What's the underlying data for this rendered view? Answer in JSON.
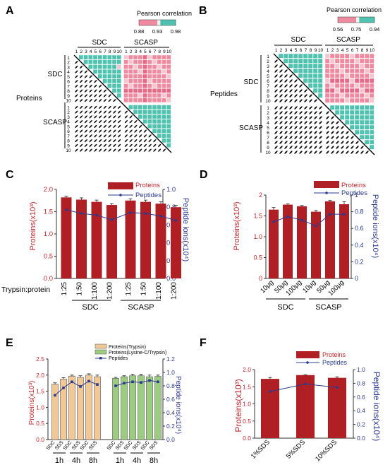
{
  "colors": {
    "bar": "#b01f24",
    "line": "#2b3a8f",
    "axis_left": "#c0272d",
    "axis_right": "#2b3a8f",
    "heat_teal": "#4fc3b0",
    "heat_pink": "#f08aa0",
    "heat_light": "#f7c5cf",
    "trypsin_bar": "#f2c896",
    "lysc_bar": "#9ccc7f"
  },
  "panels": {
    "A": {
      "letter": "A",
      "legend_title": "Pearson correlation",
      "legend_ticks": [
        "0.88",
        "0.93",
        "0.98"
      ],
      "group_top_1": "SDC",
      "group_top_2": "SCASP",
      "sample_numbers": [
        "1",
        "2",
        "3",
        "4",
        "5",
        "6",
        "7",
        "8",
        "9",
        "10"
      ],
      "row_group_1": "SDC",
      "row_group_2": "SCASP",
      "side_label": "Proteins"
    },
    "B": {
      "letter": "B",
      "legend_title": "Pearson correlation",
      "legend_ticks": [
        "0.56",
        "0.75",
        "0.94"
      ],
      "group_top_1": "SDC",
      "group_top_2": "SCASP",
      "sample_numbers": [
        "1",
        "2",
        "3",
        "4",
        "5",
        "6",
        "7",
        "8",
        "9",
        "10"
      ],
      "row_group_1": "SDC",
      "row_group_2": "SCASP",
      "side_label": "Peptides"
    },
    "C": {
      "letter": "C",
      "row_label": "Trypsin:protein",
      "group_1": "SDC",
      "group_2": "SCASP"
    },
    "D": {
      "letter": "D",
      "group_1": "SDC",
      "group_2": "SCASP"
    },
    "E": {
      "letter": "E",
      "time_labels": [
        "1h",
        "4h",
        "8h",
        "1h",
        "4h",
        "8h"
      ]
    },
    "F": {
      "letter": "F"
    }
  },
  "chart_data": [
    {
      "id": "A",
      "type": "heatmap",
      "title": "Pearson correlation",
      "scale": [
        0.88,
        0.93,
        0.98
      ],
      "rows": [
        "SDC 1-10",
        "SCASP 1-10"
      ],
      "note": "upper triangle colored heatmap, lower triangle scatter thumbnails"
    },
    {
      "id": "B",
      "type": "heatmap",
      "title": "Pearson correlation",
      "scale": [
        0.56,
        0.75,
        0.94
      ],
      "rows": [
        "SDC 1-10",
        "SCASP 1-10"
      ],
      "note": "upper triangle colored heatmap, lower triangle scatter thumbnails"
    },
    {
      "id": "C",
      "type": "bar",
      "categories": [
        "1:25",
        "1:50",
        "1:100",
        "1:200",
        "1:25",
        "1:50",
        "1:100",
        "1:200"
      ],
      "ylabel": "Proteins(x10³)",
      "y2label": "Peptide ions(x10⁴)",
      "ylim": [
        0,
        2.0
      ],
      "y2lim": [
        0,
        1.0
      ],
      "yticks": [
        "0.0",
        "0.5",
        "1.0",
        "1.5",
        "2.0"
      ],
      "y2ticks": [
        "0.0",
        "0.2",
        "0.4",
        "0.6",
        "0.8",
        "1.0"
      ],
      "series": [
        {
          "name": "Proteins",
          "values": [
            1.82,
            1.77,
            1.72,
            1.65,
            1.75,
            1.72,
            1.68,
            1.6
          ],
          "errors": [
            0.03,
            0.04,
            0.04,
            0.03,
            0.04,
            0.04,
            0.04,
            0.04
          ]
        },
        {
          "name": "Peptides",
          "values": [
            0.77,
            0.73,
            0.71,
            0.66,
            0.74,
            0.73,
            0.7,
            0.65
          ]
        }
      ]
    },
    {
      "id": "D",
      "type": "bar",
      "categories": [
        "10μg",
        "50μg",
        "100μg",
        "10μg",
        "50μg",
        "100μg"
      ],
      "ylabel": "Proteins(x10³)",
      "y2label": "Peptide ions(x10⁴)",
      "ylim": [
        0,
        2.0
      ],
      "y2lim": [
        0,
        1.0
      ],
      "yticks": [
        "0",
        "0.5",
        "1.0",
        "1.5",
        "2"
      ],
      "y2ticks": [
        "0",
        "0.2",
        "0.4",
        "0.6",
        "0.8",
        "1"
      ],
      "series": [
        {
          "name": "Proteins",
          "values": [
            1.65,
            1.77,
            1.73,
            1.6,
            1.85,
            1.78
          ],
          "errors": [
            0.05,
            0.02,
            0.02,
            0.03,
            0.02,
            0.06
          ]
        },
        {
          "name": "Peptides",
          "values": [
            0.68,
            0.74,
            0.7,
            0.63,
            0.77,
            0.77
          ]
        }
      ]
    },
    {
      "id": "E",
      "type": "bar",
      "categories": [
        "SDC",
        "SDS",
        "SDC",
        "SDS",
        "SDC",
        "SDS",
        "SDC",
        "SDS",
        "SDC",
        "SDS",
        "SDC",
        "SDS"
      ],
      "ylabel": "Proteins(x10³)",
      "y2label": "Peptide ions(x10⁴)",
      "ylim": [
        0,
        2.5
      ],
      "y2lim": [
        0,
        1.2
      ],
      "yticks": [
        "0.0",
        "0.5",
        "1.0",
        "1.5",
        "2.0",
        "2.5"
      ],
      "y2ticks": [
        "0.0",
        "0.2",
        "0.4",
        "0.6",
        "0.8",
        "1.0",
        "1.2"
      ],
      "series": [
        {
          "name": "Proteins(Trypsin)",
          "values": [
            1.72,
            1.88,
            1.97,
            1.93,
            2.0,
            1.95,
            null,
            null,
            null,
            null,
            null,
            null
          ],
          "errors": [
            0.04,
            0.04,
            0.03,
            0.05,
            0.04,
            0.05
          ]
        },
        {
          "name": "Proteins(Lysine-C/Trypsin)",
          "values": [
            null,
            null,
            null,
            null,
            null,
            null,
            1.9,
            1.95,
            1.98,
            1.98,
            1.95,
            1.96
          ],
          "errors": [
            0.03,
            0.03,
            0.05,
            0.05,
            0.05,
            0.04
          ]
        },
        {
          "name": "Peptides",
          "values": [
            0.66,
            0.77,
            0.86,
            0.79,
            0.87,
            0.82,
            0.8,
            0.84,
            0.86,
            0.85,
            0.88,
            0.86
          ]
        }
      ]
    },
    {
      "id": "F",
      "type": "bar",
      "categories": [
        "1%SDS",
        "5%SDS",
        "10%SDS"
      ],
      "ylabel": "Proteins(x10³)",
      "y2label": "Peptide ions(x10⁴)",
      "ylim": [
        0,
        2.0
      ],
      "y2lim": [
        0,
        1.0
      ],
      "yticks": [
        "0.0",
        "0.5",
        "1.0",
        "1.5",
        "2.0"
      ],
      "y2ticks": [
        "0.0",
        "0.2",
        "0.4",
        "0.6",
        "0.8",
        "1.0"
      ],
      "series": [
        {
          "name": "Proteins",
          "values": [
            1.73,
            1.84,
            1.76
          ],
          "errors": [
            0.04,
            0.01,
            0.03
          ]
        },
        {
          "name": "Peptides",
          "values": [
            0.68,
            0.79,
            0.74
          ]
        }
      ]
    }
  ]
}
